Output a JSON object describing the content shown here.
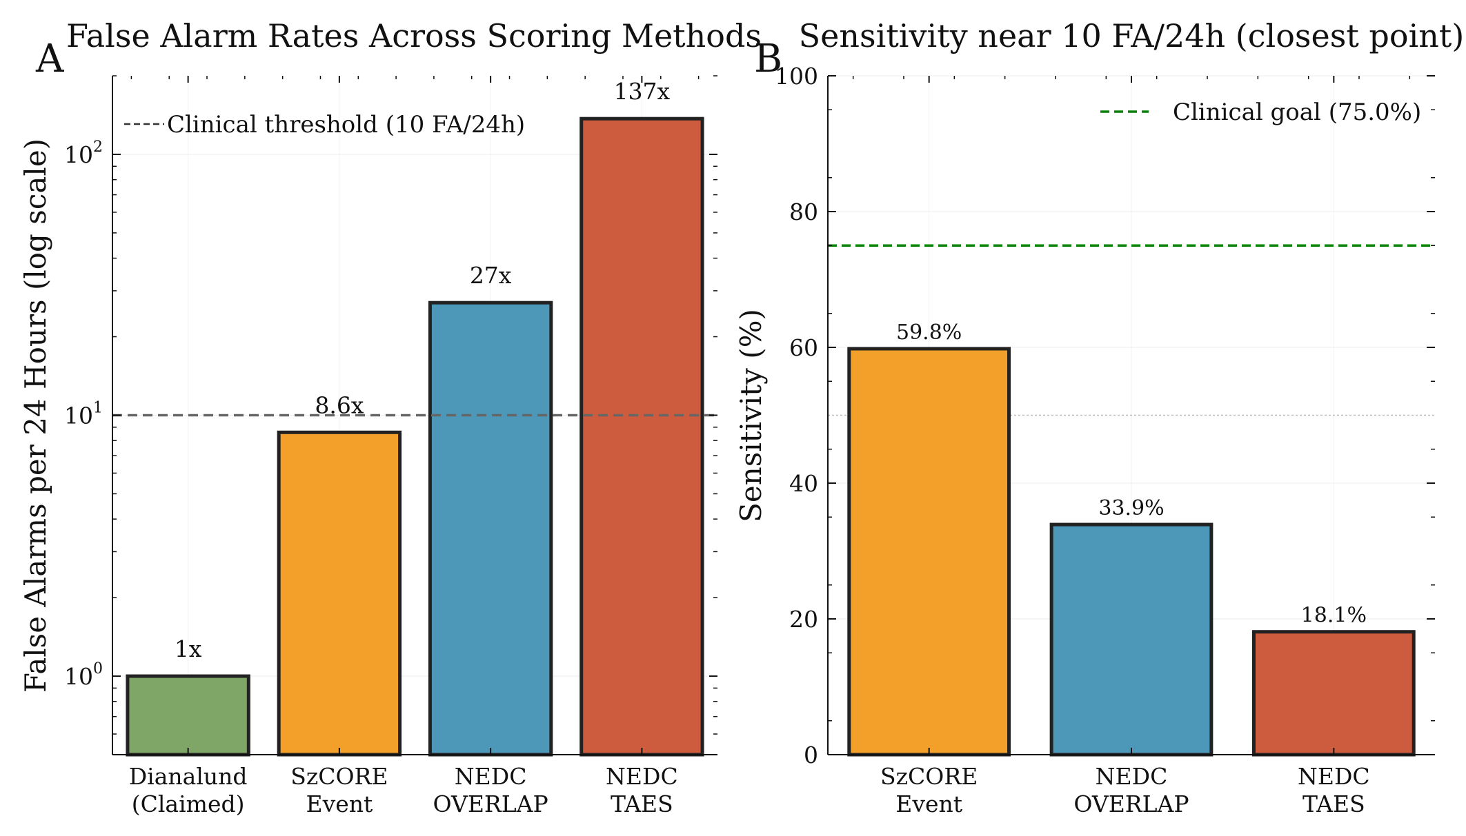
{
  "chart_data": [
    {
      "panel": "A",
      "type": "bar",
      "title": "False Alarm Rates Across Scoring Methods",
      "xlabel": "",
      "ylabel": "False Alarms per 24 Hours (log scale)",
      "yscale": "log",
      "ylim": [
        0.5,
        200
      ],
      "ytick_labels": [
        {
          "base": "10",
          "exp": "0",
          "value": 1
        },
        {
          "base": "10",
          "exp": "1",
          "value": 10
        },
        {
          "base": "10",
          "exp": "2",
          "value": 100
        }
      ],
      "categories": [
        [
          "Dianalund",
          "(Claimed)"
        ],
        [
          "SzCORE",
          "Event"
        ],
        [
          "NEDC",
          "OVERLAP"
        ],
        [
          "NEDC",
          "TAES"
        ]
      ],
      "values": [
        1.0,
        8.6,
        27.0,
        137.0
      ],
      "bar_labels": [
        "1x",
        "8.6x",
        "27x",
        "137x"
      ],
      "colors": [
        "#7fa666",
        "#f2a02a",
        "#4d97b8",
        "#cd5b3d"
      ],
      "reference_line": {
        "value": 10,
        "label": "Clinical threshold (10 FA/24h)",
        "color": "#666666"
      },
      "legend_placement": "top-left",
      "grid": true
    },
    {
      "panel": "B",
      "type": "bar",
      "title": "Sensitivity near 10 FA/24h (closest point)",
      "xlabel": "",
      "ylabel": "Sensitivity (%)",
      "ylim": [
        0,
        100
      ],
      "yticks": [
        "0",
        "20",
        "40",
        "60",
        "80",
        "100"
      ],
      "categories": [
        [
          "SzCORE",
          "Event"
        ],
        [
          "NEDC",
          "OVERLAP"
        ],
        [
          "NEDC",
          "TAES"
        ]
      ],
      "values": [
        59.8,
        33.9,
        18.1
      ],
      "bar_labels": [
        "59.8%",
        "33.9%",
        "18.1%"
      ],
      "colors": [
        "#f2a02a",
        "#4d97b8",
        "#cd5b3d"
      ],
      "reference_line": {
        "value": 75.0,
        "label": "Clinical goal (75.0%)",
        "color": "#0a820a"
      },
      "secondary_line": {
        "value": 50,
        "color": "#bbbbbb"
      },
      "legend_placement": "top-right",
      "grid": true
    }
  ]
}
